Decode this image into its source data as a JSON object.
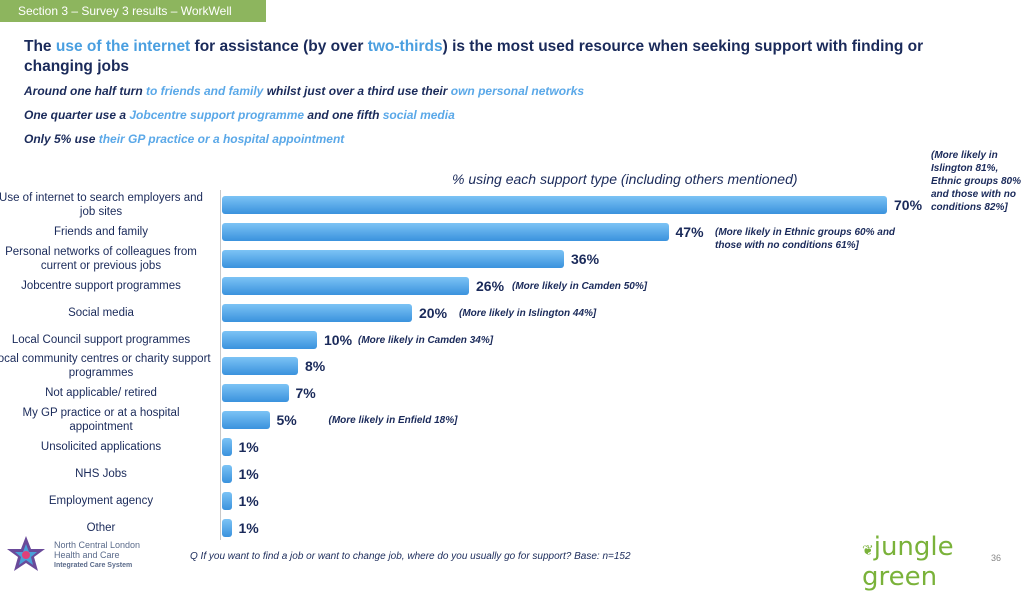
{
  "section_tab": "Section 3 – Survey 3 results – WorkWell",
  "headline": {
    "p1": "The ",
    "h1": "use of the internet",
    "p2": " for assistance (by over ",
    "h2": "two-thirds",
    "p3": ") is the most used resource when seeking support with finding or changing jobs"
  },
  "sub1": {
    "p1": "Around one half turn ",
    "h1": "to friends and family",
    "p2": " whilst just over a third use their ",
    "h2": "own personal networks"
  },
  "sub2": {
    "p1": "One quarter use a ",
    "h1": "Jobcentre support programme",
    "p2": " and one fifth ",
    "h2": "social media"
  },
  "sub3": {
    "p1": "Only 5% use ",
    "h1": "their GP practice or a hospital appointment"
  },
  "chart_data": {
    "type": "bar",
    "orientation": "horizontal",
    "title": "% using each support type (including others mentioned)",
    "categories": [
      "Use of internet to search employers and job sites",
      "Friends and family",
      "Personal networks of colleagues from current or previous jobs",
      "Jobcentre support programmes",
      "Social media",
      "Local Council support programmes",
      "Local community centres or charity support programmes",
      "Not applicable/ retired",
      "My GP practice or at a hospital appointment",
      "Unsolicited applications",
      "NHS Jobs",
      "Employment agency",
      "Other"
    ],
    "values": [
      70,
      47,
      36,
      26,
      20,
      10,
      8,
      7,
      5,
      1,
      1,
      1,
      1
    ],
    "value_labels": [
      "70%",
      "47%",
      "36%",
      "26%",
      "20%",
      "10%",
      "8%",
      "7%",
      "5%",
      "1%",
      "1%",
      "1%",
      "1%"
    ],
    "annotations": [
      "(More likely in Islington 81%, Ethnic groups 80% and those with no conditions 82%]",
      "(More likely in Ethnic groups 60% and those with no conditions 61%]",
      "",
      "(More likely in Camden 50%]",
      "(More likely in Islington 44%]",
      "(More likely in Camden 34%]",
      "",
      "",
      "(More likely in Enfield 18%]",
      "",
      "",
      "",
      ""
    ],
    "bar_color": "#4a9fe0"
  },
  "footnote": "Q If you want to find a job or want to change job, where do you usually go for support? Base: n=152",
  "page_number": "36",
  "logo_nc": [
    "North Central London",
    "Health and Care",
    "Integrated Care System"
  ],
  "logo_jg": "jungle green"
}
